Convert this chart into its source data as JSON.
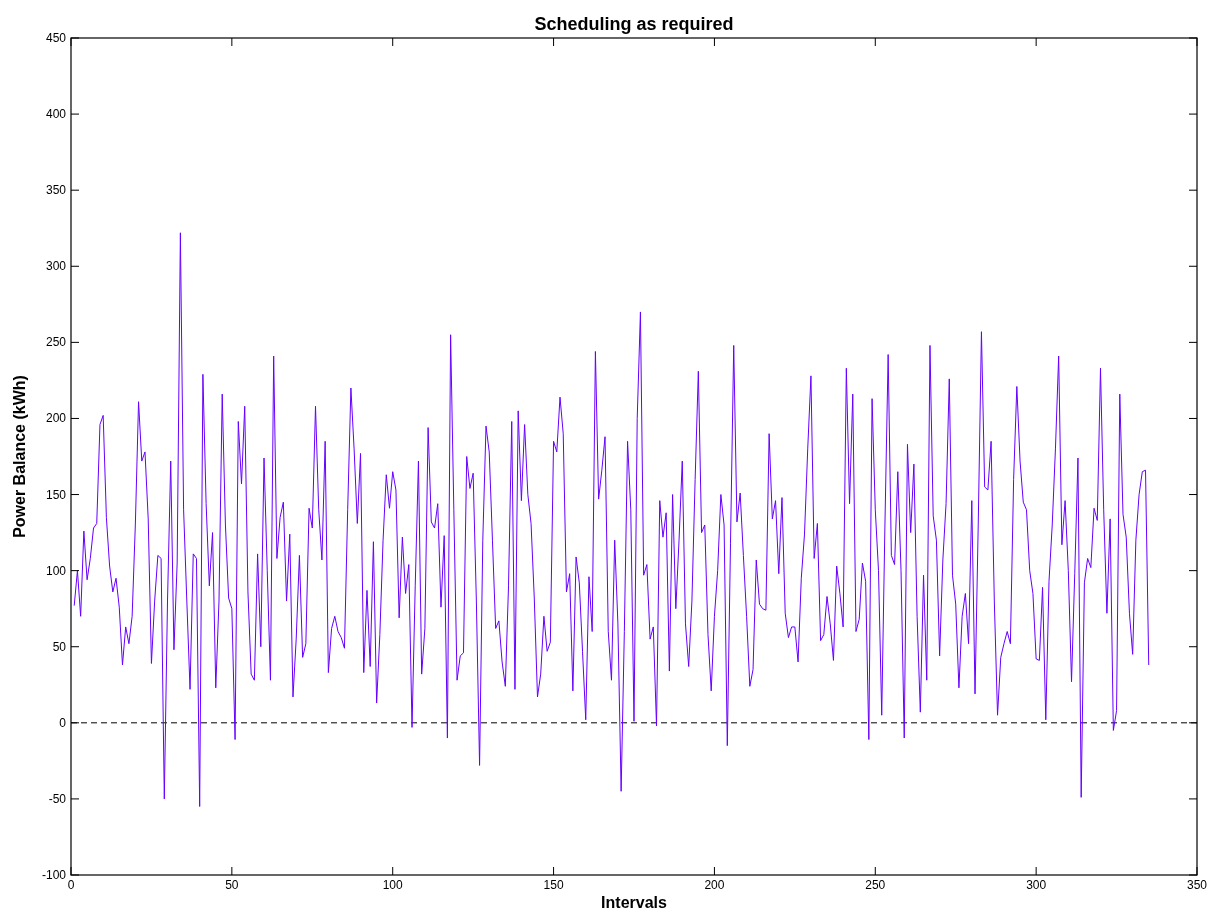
{
  "chart_data": {
    "type": "line",
    "title": "Scheduling as required",
    "xlabel": "Intervals",
    "ylabel": "Power Balance (kWh)",
    "xlim": [
      0,
      350
    ],
    "xticks": [
      0,
      50,
      100,
      150,
      200,
      250,
      300,
      350
    ],
    "ylim": [
      -100,
      450
    ],
    "yticks": [
      -100,
      -50,
      0,
      50,
      100,
      150,
      200,
      250,
      300,
      350,
      400,
      450
    ],
    "grid": false,
    "line_style": "solid",
    "ref_lines": [
      {
        "axis": "y",
        "value": 0,
        "color": "#000000",
        "line_style": "dashed"
      }
    ],
    "series": [
      {
        "color": "#6600ff",
        "x": [
          1,
          2,
          3,
          4,
          5,
          6,
          7,
          8,
          9,
          10,
          11,
          12,
          13,
          14,
          15,
          16,
          17,
          18,
          19,
          20,
          21,
          22,
          23,
          24,
          25,
          26,
          27,
          28,
          29,
          30,
          31,
          32,
          33,
          34,
          35,
          36,
          37,
          38,
          39,
          40,
          41,
          42,
          43,
          44,
          45,
          46,
          47,
          48,
          49,
          50,
          51,
          52,
          53,
          54,
          55,
          56,
          57,
          58,
          59,
          60,
          61,
          62,
          63,
          64,
          65,
          66,
          67,
          68,
          69,
          70,
          71,
          72,
          73,
          74,
          75,
          76,
          77,
          78,
          79,
          80,
          81,
          82,
          83,
          84,
          85,
          86,
          87,
          88,
          89,
          90,
          91,
          92,
          93,
          94,
          95,
          96,
          97,
          98,
          99,
          100,
          101,
          102,
          103,
          104,
          105,
          106,
          107,
          108,
          109,
          110,
          111,
          112,
          113,
          114,
          115,
          116,
          117,
          118,
          119,
          120,
          121,
          122,
          123,
          124,
          125,
          126,
          127,
          128,
          129,
          130,
          131,
          132,
          133,
          134,
          135,
          136,
          137,
          138,
          139,
          140,
          141,
          142,
          143,
          144,
          145,
          146,
          147,
          148,
          149,
          150,
          151,
          152,
          153,
          154,
          155,
          156,
          157,
          158,
          159,
          160,
          161,
          162,
          163,
          164,
          165,
          166,
          167,
          168,
          169,
          170,
          171,
          172,
          173,
          174,
          175,
          176,
          177,
          178,
          179,
          180,
          181,
          182,
          183,
          184,
          185,
          186,
          187,
          188,
          189,
          190,
          191,
          192,
          193,
          194,
          195,
          196,
          197,
          198,
          199,
          200,
          201,
          202,
          203,
          204,
          205,
          206,
          207,
          208,
          209,
          210,
          211,
          212,
          213,
          214,
          215,
          216,
          217,
          218,
          219,
          220,
          221,
          222,
          223,
          224,
          225,
          226,
          227,
          228,
          229,
          230,
          231,
          232,
          233,
          234,
          235,
          236,
          237,
          238,
          239,
          240,
          241,
          242,
          243,
          244,
          245,
          246,
          247,
          248,
          249,
          250,
          251,
          252,
          253,
          254,
          255,
          256,
          257,
          258,
          259,
          260,
          261,
          262,
          263,
          264,
          265,
          266,
          267,
          268,
          269,
          270,
          271,
          272,
          273,
          274,
          275,
          276,
          277,
          278,
          279,
          280,
          281,
          282,
          283,
          284,
          285,
          286,
          287,
          288,
          289,
          290,
          291,
          292,
          293,
          294,
          295,
          296,
          297,
          298,
          299,
          300,
          301,
          302,
          303,
          304,
          305,
          306,
          307,
          308,
          309,
          310,
          311,
          312,
          313,
          314,
          315,
          316,
          317,
          318,
          319,
          320,
          321,
          322,
          323,
          324,
          325,
          326,
          327,
          328,
          329,
          330,
          331,
          332,
          333,
          334,
          335
        ],
        "values": [
          77,
          100,
          70,
          126,
          94,
          108,
          128,
          131,
          196,
          202,
          135,
          103,
          86,
          95,
          76,
          38,
          63,
          52,
          70,
          130,
          211,
          172,
          178,
          134,
          39,
          80,
          110,
          108,
          -50,
          80,
          172,
          48,
          105,
          322,
          140,
          80,
          22,
          111,
          108,
          -55,
          229,
          144,
          90,
          125,
          23,
          80,
          216,
          130,
          82,
          75,
          -11,
          198,
          157,
          208,
          86,
          32,
          28,
          111,
          50,
          174,
          100,
          28,
          241,
          108,
          135,
          145,
          80,
          124,
          17,
          55,
          110,
          43,
          52,
          141,
          128,
          208,
          140,
          107,
          185,
          33,
          62,
          70,
          60,
          56,
          49,
          140,
          220,
          180,
          131,
          177,
          33,
          87,
          37,
          119,
          13,
          58,
          120,
          163,
          141,
          165,
          153,
          69,
          122,
          85,
          104,
          -3,
          90,
          172,
          32,
          62,
          194,
          132,
          128,
          144,
          76,
          123,
          -10,
          255,
          140,
          28,
          44,
          46,
          175,
          154,
          164,
          80,
          -28,
          120,
          195,
          178,
          120,
          62,
          67,
          40,
          24,
          90,
          198,
          22,
          205,
          146,
          196,
          150,
          131,
          82,
          17,
          32,
          70,
          47,
          53,
          185,
          178,
          214,
          190,
          86,
          98,
          21,
          109,
          92,
          47,
          2,
          96,
          60,
          244,
          147,
          166,
          188,
          60,
          28,
          120,
          65,
          -45,
          60,
          185,
          140,
          1,
          200,
          270,
          97,
          104,
          55,
          63,
          -2,
          146,
          122,
          138,
          34,
          150,
          75,
          120,
          172,
          65,
          37,
          80,
          160,
          231,
          125,
          130,
          58,
          21,
          70,
          100,
          150,
          130,
          -15,
          118,
          248,
          132,
          151,
          110,
          70,
          24,
          35,
          107,
          78,
          75,
          74,
          190,
          134,
          146,
          98,
          148,
          72,
          56,
          63,
          63,
          40,
          95,
          124,
          180,
          228,
          108,
          131,
          54,
          58,
          83,
          65,
          41,
          103,
          85,
          63,
          233,
          144,
          216,
          60,
          68,
          105,
          93,
          -11,
          213,
          140,
          100,
          5,
          130,
          242,
          110,
          104,
          165,
          100,
          -10,
          183,
          125,
          170,
          70,
          7,
          97,
          28,
          248,
          136,
          120,
          44,
          107,
          144,
          226,
          97,
          78,
          23,
          70,
          85,
          52,
          146,
          19,
          130,
          257,
          155,
          153,
          185,
          80,
          5,
          43,
          52,
          60,
          52,
          160,
          221,
          172,
          145,
          140,
          100,
          85,
          42,
          41,
          89,
          2,
          93,
          130,
          180,
          241,
          117,
          146,
          100,
          27,
          98,
          174,
          -49,
          92,
          108,
          102,
          141,
          133,
          233,
          140,
          72,
          134,
          -5,
          8,
          216,
          137,
          122,
          72,
          45,
          120,
          150,
          165,
          166,
          38
        ]
      }
    ]
  }
}
